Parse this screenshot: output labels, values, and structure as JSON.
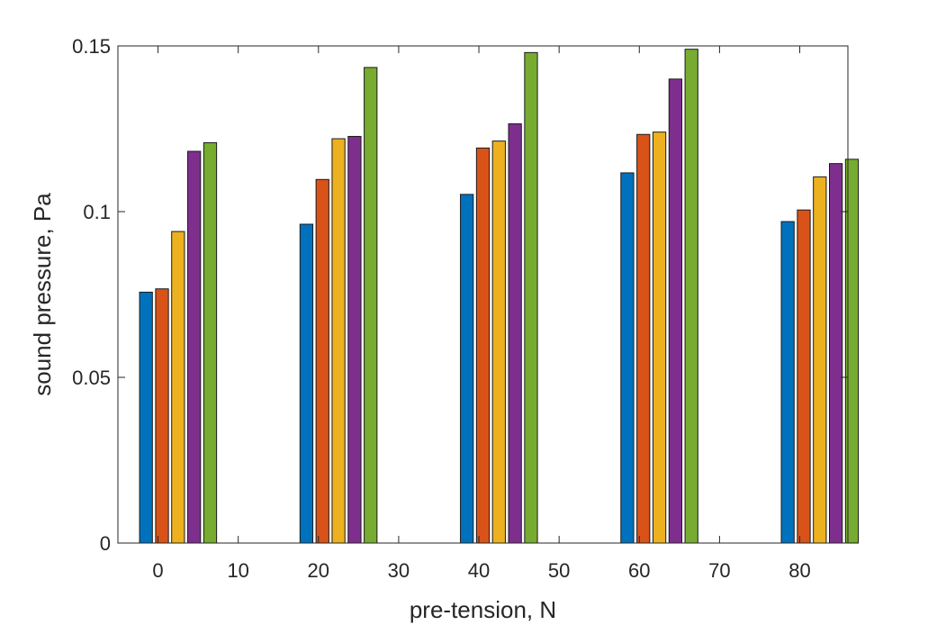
{
  "chart_data": {
    "type": "bar",
    "title": "",
    "xlabel": "pre-tension, N",
    "ylabel": "sound pressure, Pa",
    "xlim": [
      -5,
      86
    ],
    "ylim": [
      0,
      0.15
    ],
    "x_ticks": [
      0,
      10,
      20,
      30,
      40,
      50,
      60,
      70,
      80
    ],
    "y_ticks": [
      0,
      0.05,
      0.1,
      0.15
    ],
    "x_tick_labels": [
      "0",
      "10",
      "20",
      "30",
      "40",
      "50",
      "60",
      "70",
      "80"
    ],
    "y_tick_labels": [
      "0",
      "0.05",
      "0.1",
      "0.15"
    ],
    "grid": false,
    "legend": "none",
    "groups": [
      0,
      20,
      40,
      60,
      80
    ],
    "series": [
      {
        "color": "#0072BD",
        "x": [
          -1.5,
          18.5,
          38.5,
          58.5,
          78.5
        ],
        "values": [
          0.0757,
          0.0962,
          0.1052,
          0.1117,
          0.097
        ]
      },
      {
        "color": "#D95319",
        "x": [
          0.5,
          20.5,
          40.5,
          60.5,
          80.5
        ],
        "values": [
          0.0767,
          0.1097,
          0.1192,
          0.1233,
          0.1005
        ]
      },
      {
        "color": "#EDB120",
        "x": [
          2.5,
          22.5,
          42.5,
          62.5,
          82.5
        ],
        "values": [
          0.094,
          0.122,
          0.1213,
          0.124,
          0.1105
        ]
      },
      {
        "color": "#7E2F8E",
        "x": [
          4.5,
          24.5,
          44.5,
          64.5,
          84.5
        ],
        "values": [
          0.1182,
          0.1227,
          0.1265,
          0.14,
          0.1145
        ]
      },
      {
        "color": "#77AC30",
        "x": [
          6.5,
          26.5,
          46.5,
          66.5,
          86.5
        ],
        "values": [
          0.1208,
          0.1435,
          0.148,
          0.149,
          0.1158
        ]
      }
    ]
  }
}
